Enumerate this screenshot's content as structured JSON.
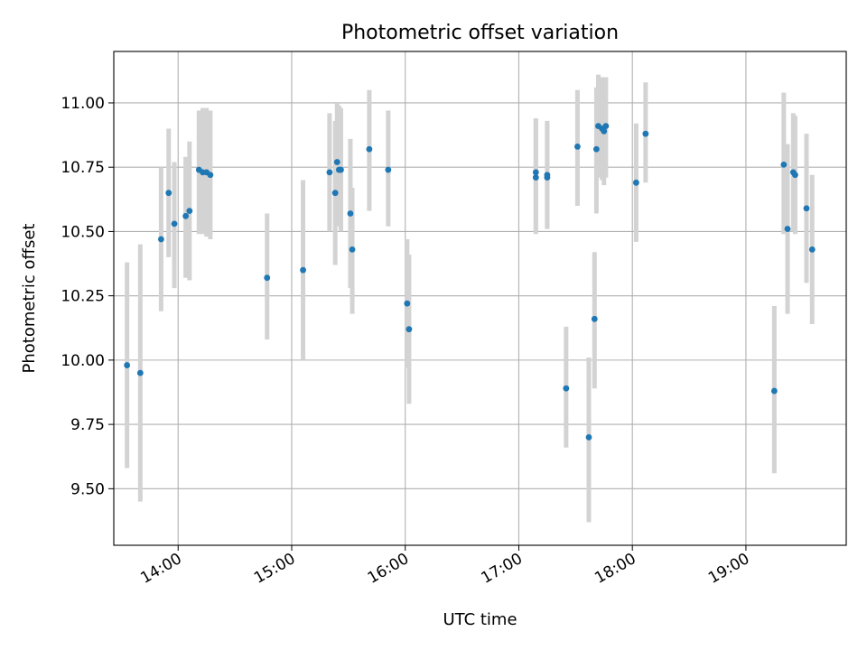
{
  "chart_data": {
    "type": "scatter",
    "title": "Photometric offset variation",
    "xlabel": "UTC time",
    "ylabel": "Photometric offset",
    "x_unit": "hours UTC",
    "xlim": [
      "13:26",
      "19:53"
    ],
    "ylim": [
      9.28,
      11.2
    ],
    "x_ticks": [
      "14:00",
      "15:00",
      "16:00",
      "17:00",
      "18:00",
      "19:00"
    ],
    "y_ticks": [
      "9.50",
      "9.75",
      "10.00",
      "10.25",
      "10.50",
      "10.75",
      "11.00"
    ],
    "grid": true,
    "colors": {
      "marker": "#1f77b4",
      "errorbar": "#d3d3d3"
    },
    "series": [
      {
        "points": [
          {
            "x": "13:33",
            "y": 9.98,
            "ylo": 9.58,
            "yhi": 10.38
          },
          {
            "x": "13:40",
            "y": 9.95,
            "ylo": 9.45,
            "yhi": 10.45
          },
          {
            "x": "13:51",
            "y": 10.47,
            "ylo": 10.19,
            "yhi": 10.75
          },
          {
            "x": "13:55",
            "y": 10.65,
            "ylo": 10.4,
            "yhi": 10.9
          },
          {
            "x": "13:58",
            "y": 10.53,
            "ylo": 10.28,
            "yhi": 10.77
          },
          {
            "x": "14:04",
            "y": 10.56,
            "ylo": 10.32,
            "yhi": 10.79
          },
          {
            "x": "14:06",
            "y": 10.58,
            "ylo": 10.31,
            "yhi": 10.85
          },
          {
            "x": "14:11",
            "y": 10.74,
            "ylo": 10.49,
            "yhi": 10.97
          },
          {
            "x": "14:13",
            "y": 10.73,
            "ylo": 10.49,
            "yhi": 10.98
          },
          {
            "x": "14:15",
            "y": 10.73,
            "ylo": 10.48,
            "yhi": 10.98
          },
          {
            "x": "14:17",
            "y": 10.72,
            "ylo": 10.47,
            "yhi": 10.97
          },
          {
            "x": "14:47",
            "y": 10.32,
            "ylo": 10.08,
            "yhi": 10.57
          },
          {
            "x": "15:06",
            "y": 10.35,
            "ylo": 10.0,
            "yhi": 10.7
          },
          {
            "x": "15:20",
            "y": 10.73,
            "ylo": 10.5,
            "yhi": 10.96
          },
          {
            "x": "15:23",
            "y": 10.65,
            "ylo": 10.37,
            "yhi": 10.93
          },
          {
            "x": "15:24",
            "y": 10.77,
            "ylo": 10.55,
            "yhi": 11.0
          },
          {
            "x": "15:25",
            "y": 10.74,
            "ylo": 10.52,
            "yhi": 10.99
          },
          {
            "x": "15:26",
            "y": 10.74,
            "ylo": 10.5,
            "yhi": 10.98
          },
          {
            "x": "15:31",
            "y": 10.57,
            "ylo": 10.28,
            "yhi": 10.86
          },
          {
            "x": "15:32",
            "y": 10.43,
            "ylo": 10.18,
            "yhi": 10.67
          },
          {
            "x": "15:41",
            "y": 10.82,
            "ylo": 10.58,
            "yhi": 11.05
          },
          {
            "x": "15:51",
            "y": 10.74,
            "ylo": 10.52,
            "yhi": 10.97
          },
          {
            "x": "16:01",
            "y": 10.22,
            "ylo": 9.97,
            "yhi": 10.47
          },
          {
            "x": "16:02",
            "y": 10.12,
            "ylo": 9.83,
            "yhi": 10.41
          },
          {
            "x": "17:09",
            "y": 10.73,
            "ylo": 10.5,
            "yhi": 10.94
          },
          {
            "x": "17:09",
            "y": 10.71,
            "ylo": 10.49,
            "yhi": 10.94
          },
          {
            "x": "17:15",
            "y": 10.71,
            "ylo": 10.51,
            "yhi": 10.93
          },
          {
            "x": "17:15",
            "y": 10.72,
            "ylo": 10.51,
            "yhi": 10.92
          },
          {
            "x": "17:25",
            "y": 9.89,
            "ylo": 9.66,
            "yhi": 10.13
          },
          {
            "x": "17:31",
            "y": 10.83,
            "ylo": 10.6,
            "yhi": 11.05
          },
          {
            "x": "17:37",
            "y": 9.7,
            "ylo": 9.37,
            "yhi": 10.01
          },
          {
            "x": "17:40",
            "y": 10.16,
            "ylo": 9.89,
            "yhi": 10.42
          },
          {
            "x": "17:41",
            "y": 10.82,
            "ylo": 10.57,
            "yhi": 11.06
          },
          {
            "x": "17:42",
            "y": 10.91,
            "ylo": 10.71,
            "yhi": 11.11
          },
          {
            "x": "17:44",
            "y": 10.9,
            "ylo": 10.7,
            "yhi": 11.1
          },
          {
            "x": "17:45",
            "y": 10.89,
            "ylo": 10.68,
            "yhi": 11.09
          },
          {
            "x": "17:46",
            "y": 10.91,
            "ylo": 10.71,
            "yhi": 11.1
          },
          {
            "x": "18:02",
            "y": 10.69,
            "ylo": 10.46,
            "yhi": 10.92
          },
          {
            "x": "18:07",
            "y": 10.88,
            "ylo": 10.69,
            "yhi": 11.08
          },
          {
            "x": "19:15",
            "y": 9.88,
            "ylo": 9.56,
            "yhi": 10.21
          },
          {
            "x": "19:20",
            "y": 10.76,
            "ylo": 10.49,
            "yhi": 11.04
          },
          {
            "x": "19:22",
            "y": 10.51,
            "ylo": 10.18,
            "yhi": 10.84
          },
          {
            "x": "19:25",
            "y": 10.73,
            "ylo": 10.5,
            "yhi": 10.96
          },
          {
            "x": "19:26",
            "y": 10.72,
            "ylo": 10.49,
            "yhi": 10.95
          },
          {
            "x": "19:32",
            "y": 10.59,
            "ylo": 10.3,
            "yhi": 10.88
          },
          {
            "x": "19:35",
            "y": 10.43,
            "ylo": 10.14,
            "yhi": 10.72
          }
        ]
      }
    ]
  }
}
